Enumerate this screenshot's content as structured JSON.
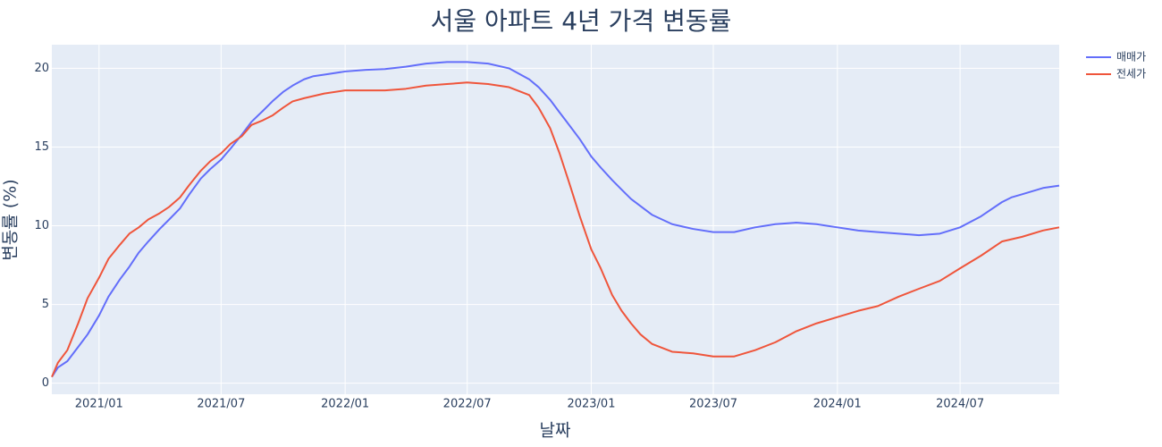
{
  "chart_data": {
    "type": "line",
    "title": "서울 아파트 4년 가격 변동률",
    "xlabel": "날짜",
    "ylabel": "변동률 (%)",
    "xlim": [
      "2020-10-23",
      "2024-11-25"
    ],
    "ylim": [
      -0.7,
      21.5
    ],
    "x_ticks": [
      {
        "date": "2021-01-01",
        "label": "2021/01"
      },
      {
        "date": "2021-07-01",
        "label": "2021/07"
      },
      {
        "date": "2022-01-01",
        "label": "2022/01"
      },
      {
        "date": "2022-07-01",
        "label": "2022/07"
      },
      {
        "date": "2023-01-01",
        "label": "2023/01"
      },
      {
        "date": "2023-07-01",
        "label": "2023/07"
      },
      {
        "date": "2024-01-01",
        "label": "2024/01"
      },
      {
        "date": "2024-07-01",
        "label": "2024/07"
      }
    ],
    "y_ticks": [
      0,
      5,
      10,
      15,
      20
    ],
    "grid": true,
    "legend_position": "top-right",
    "colors": {
      "background": "#e5ecf6",
      "grid": "#ffffff",
      "text": "#2a3f5f"
    },
    "series": [
      {
        "name": "매매가",
        "color": "#636efa",
        "points": [
          [
            "2020-10-23",
            0.4
          ],
          [
            "2020-11-01",
            1.0
          ],
          [
            "2020-11-15",
            1.4
          ],
          [
            "2020-12-01",
            2.3
          ],
          [
            "2020-12-15",
            3.1
          ],
          [
            "2021-01-01",
            4.3
          ],
          [
            "2021-01-15",
            5.5
          ],
          [
            "2021-02-01",
            6.6
          ],
          [
            "2021-02-15",
            7.4
          ],
          [
            "2021-03-01",
            8.3
          ],
          [
            "2021-03-15",
            9.0
          ],
          [
            "2021-04-01",
            9.8
          ],
          [
            "2021-04-15",
            10.4
          ],
          [
            "2021-05-01",
            11.1
          ],
          [
            "2021-05-15",
            12.0
          ],
          [
            "2021-06-01",
            13.0
          ],
          [
            "2021-06-15",
            13.6
          ],
          [
            "2021-07-01",
            14.2
          ],
          [
            "2021-07-15",
            14.9
          ],
          [
            "2021-08-01",
            15.8
          ],
          [
            "2021-08-15",
            16.6
          ],
          [
            "2021-09-01",
            17.3
          ],
          [
            "2021-09-15",
            17.9
          ],
          [
            "2021-10-01",
            18.5
          ],
          [
            "2021-10-15",
            18.9
          ],
          [
            "2021-11-01",
            19.3
          ],
          [
            "2021-11-15",
            19.5
          ],
          [
            "2021-12-01",
            19.6
          ],
          [
            "2022-01-01",
            19.8
          ],
          [
            "2022-02-01",
            19.9
          ],
          [
            "2022-03-01",
            19.95
          ],
          [
            "2022-04-01",
            20.1
          ],
          [
            "2022-05-01",
            20.3
          ],
          [
            "2022-06-01",
            20.4
          ],
          [
            "2022-07-01",
            20.4
          ],
          [
            "2022-08-01",
            20.3
          ],
          [
            "2022-09-01",
            20.0
          ],
          [
            "2022-10-01",
            19.3
          ],
          [
            "2022-10-15",
            18.8
          ],
          [
            "2022-11-01",
            18.0
          ],
          [
            "2022-11-15",
            17.2
          ],
          [
            "2022-12-01",
            16.3
          ],
          [
            "2022-12-15",
            15.5
          ],
          [
            "2023-01-01",
            14.4
          ],
          [
            "2023-01-15",
            13.7
          ],
          [
            "2023-02-01",
            12.9
          ],
          [
            "2023-02-15",
            12.3
          ],
          [
            "2023-03-01",
            11.7
          ],
          [
            "2023-04-01",
            10.7
          ],
          [
            "2023-05-01",
            10.1
          ],
          [
            "2023-06-01",
            9.8
          ],
          [
            "2023-07-01",
            9.6
          ],
          [
            "2023-08-01",
            9.6
          ],
          [
            "2023-09-01",
            9.9
          ],
          [
            "2023-10-01",
            10.1
          ],
          [
            "2023-11-01",
            10.2
          ],
          [
            "2023-12-01",
            10.1
          ],
          [
            "2024-01-01",
            9.9
          ],
          [
            "2024-02-01",
            9.7
          ],
          [
            "2024-03-01",
            9.6
          ],
          [
            "2024-04-01",
            9.5
          ],
          [
            "2024-05-01",
            9.4
          ],
          [
            "2024-06-01",
            9.5
          ],
          [
            "2024-07-01",
            9.9
          ],
          [
            "2024-08-01",
            10.6
          ],
          [
            "2024-09-01",
            11.5
          ],
          [
            "2024-09-15",
            11.8
          ],
          [
            "2024-10-01",
            12.0
          ],
          [
            "2024-11-01",
            12.4
          ],
          [
            "2024-11-25",
            12.55
          ]
        ]
      },
      {
        "name": "전세가",
        "color": "#ef553b",
        "points": [
          [
            "2020-10-23",
            0.4
          ],
          [
            "2020-11-01",
            1.3
          ],
          [
            "2020-11-15",
            2.1
          ],
          [
            "2020-12-01",
            3.8
          ],
          [
            "2020-12-15",
            5.4
          ],
          [
            "2021-01-01",
            6.7
          ],
          [
            "2021-01-15",
            7.9
          ],
          [
            "2021-02-01",
            8.8
          ],
          [
            "2021-02-15",
            9.5
          ],
          [
            "2021-03-01",
            9.9
          ],
          [
            "2021-03-15",
            10.4
          ],
          [
            "2021-04-01",
            10.8
          ],
          [
            "2021-04-15",
            11.2
          ],
          [
            "2021-05-01",
            11.8
          ],
          [
            "2021-05-15",
            12.6
          ],
          [
            "2021-06-01",
            13.5
          ],
          [
            "2021-06-15",
            14.1
          ],
          [
            "2021-07-01",
            14.6
          ],
          [
            "2021-07-15",
            15.2
          ],
          [
            "2021-08-01",
            15.7
          ],
          [
            "2021-08-15",
            16.4
          ],
          [
            "2021-09-01",
            16.7
          ],
          [
            "2021-09-15",
            17.0
          ],
          [
            "2021-10-01",
            17.5
          ],
          [
            "2021-10-15",
            17.9
          ],
          [
            "2021-11-01",
            18.1
          ],
          [
            "2021-12-01",
            18.4
          ],
          [
            "2022-01-01",
            18.6
          ],
          [
            "2022-02-01",
            18.6
          ],
          [
            "2022-03-01",
            18.6
          ],
          [
            "2022-04-01",
            18.7
          ],
          [
            "2022-05-01",
            18.9
          ],
          [
            "2022-06-01",
            19.0
          ],
          [
            "2022-07-01",
            19.1
          ],
          [
            "2022-08-01",
            19.0
          ],
          [
            "2022-09-01",
            18.8
          ],
          [
            "2022-10-01",
            18.3
          ],
          [
            "2022-10-15",
            17.5
          ],
          [
            "2022-11-01",
            16.2
          ],
          [
            "2022-11-15",
            14.6
          ],
          [
            "2022-12-01",
            12.5
          ],
          [
            "2022-12-15",
            10.6
          ],
          [
            "2023-01-01",
            8.5
          ],
          [
            "2023-01-15",
            7.3
          ],
          [
            "2023-02-01",
            5.6
          ],
          [
            "2023-02-15",
            4.6
          ],
          [
            "2023-03-01",
            3.8
          ],
          [
            "2023-03-15",
            3.1
          ],
          [
            "2023-04-01",
            2.5
          ],
          [
            "2023-05-01",
            2.0
          ],
          [
            "2023-06-01",
            1.9
          ],
          [
            "2023-07-01",
            1.7
          ],
          [
            "2023-08-01",
            1.7
          ],
          [
            "2023-09-01",
            2.1
          ],
          [
            "2023-10-01",
            2.6
          ],
          [
            "2023-11-01",
            3.3
          ],
          [
            "2023-12-01",
            3.8
          ],
          [
            "2024-01-01",
            4.2
          ],
          [
            "2024-02-01",
            4.6
          ],
          [
            "2024-03-01",
            4.9
          ],
          [
            "2024-04-01",
            5.5
          ],
          [
            "2024-05-01",
            6.0
          ],
          [
            "2024-06-01",
            6.5
          ],
          [
            "2024-07-01",
            7.3
          ],
          [
            "2024-08-01",
            8.1
          ],
          [
            "2024-09-01",
            9.0
          ],
          [
            "2024-10-01",
            9.3
          ],
          [
            "2024-11-01",
            9.7
          ],
          [
            "2024-11-25",
            9.9
          ]
        ]
      }
    ]
  }
}
